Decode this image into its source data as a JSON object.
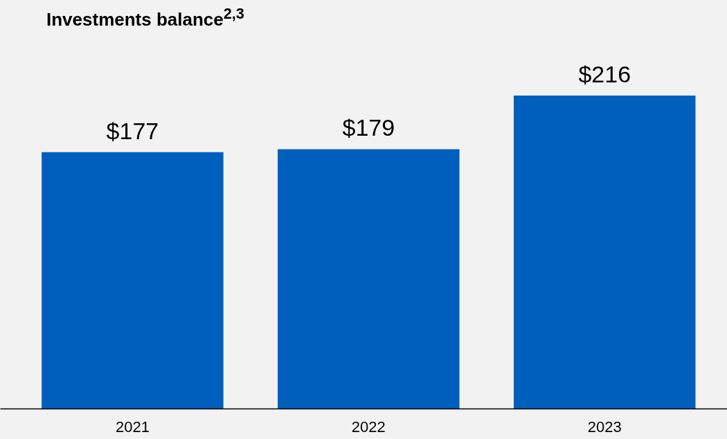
{
  "chart_data": {
    "type": "bar",
    "title": "Investments balance$^{2,3}$",
    "categories": [
      "2021",
      "2022",
      "2023"
    ],
    "values": [
      177,
      179,
      216
    ],
    "value_labels": [
      "$177",
      "$179",
      "$216"
    ],
    "color": "#005ebd",
    "grid": false,
    "tick_labels": "x"
  }
}
